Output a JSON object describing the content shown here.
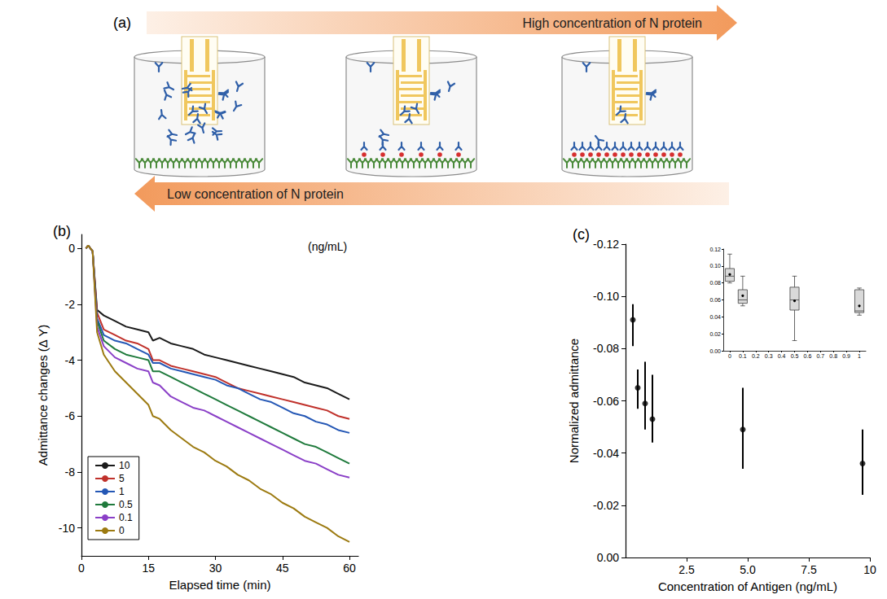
{
  "diagram": {
    "label": "(a)",
    "top_arrow": "High concentration of N protein",
    "bottom_arrow": "Low concentration of N protein"
  },
  "chart_data": [
    {
      "type": "line",
      "title": "(b)",
      "annotation": "(ng/mL)",
      "x_label": "Elapsed time (min)",
      "y_label": "Admittance changes (Δ Y)",
      "x": [
        1,
        1.5,
        2.5,
        3.5,
        5,
        7.5,
        10,
        12.5,
        15,
        16,
        17.5,
        20,
        22.5,
        25,
        27.5,
        30,
        32.5,
        35,
        37.5,
        40,
        42.5,
        45,
        47.5,
        50,
        52.5,
        55,
        57.5,
        60
      ],
      "series": [
        {
          "name": "10",
          "color": "#1a1a1a",
          "values": [
            0,
            0.1,
            -0.1,
            -2.2,
            -2.4,
            -2.6,
            -2.8,
            -2.9,
            -3.0,
            -3.3,
            -3.2,
            -3.4,
            -3.5,
            -3.6,
            -3.8,
            -3.9,
            -4.0,
            -4.1,
            -4.2,
            -4.3,
            -4.4,
            -4.5,
            -4.6,
            -4.8,
            -4.9,
            -5.0,
            -5.2,
            -5.4
          ]
        },
        {
          "name": "5",
          "color": "#c0312b",
          "values": [
            0,
            0.1,
            -0.1,
            -2.3,
            -2.9,
            -3.1,
            -3.3,
            -3.4,
            -3.6,
            -4.0,
            -4.0,
            -4.2,
            -4.3,
            -4.4,
            -4.5,
            -4.6,
            -4.8,
            -5.0,
            -5.1,
            -5.2,
            -5.3,
            -5.4,
            -5.5,
            -5.6,
            -5.7,
            -5.8,
            -6.0,
            -6.1
          ]
        },
        {
          "name": "1",
          "color": "#2457b5",
          "values": [
            0,
            0.1,
            -0.1,
            -2.5,
            -3.1,
            -3.3,
            -3.4,
            -3.6,
            -3.8,
            -4.1,
            -4.1,
            -4.3,
            -4.4,
            -4.5,
            -4.6,
            -4.7,
            -4.9,
            -5.0,
            -5.2,
            -5.4,
            -5.5,
            -5.7,
            -5.9,
            -6.0,
            -6.2,
            -6.3,
            -6.5,
            -6.6
          ]
        },
        {
          "name": "0.5",
          "color": "#1f7a3c",
          "values": [
            0,
            0.1,
            -0.1,
            -2.6,
            -3.3,
            -3.6,
            -3.8,
            -3.9,
            -4.0,
            -4.4,
            -4.4,
            -4.6,
            -4.8,
            -5.0,
            -5.2,
            -5.4,
            -5.6,
            -5.8,
            -6.0,
            -6.2,
            -6.4,
            -6.6,
            -6.8,
            -7.0,
            -7.1,
            -7.3,
            -7.5,
            -7.7
          ]
        },
        {
          "name": "0.1",
          "color": "#8a3fc7",
          "values": [
            0,
            0.1,
            -0.1,
            -2.8,
            -3.5,
            -3.9,
            -4.1,
            -4.3,
            -4.4,
            -4.8,
            -4.9,
            -5.3,
            -5.5,
            -5.7,
            -5.8,
            -6.0,
            -6.2,
            -6.4,
            -6.6,
            -6.8,
            -7.0,
            -7.2,
            -7.4,
            -7.6,
            -7.7,
            -7.9,
            -8.1,
            -8.2
          ]
        },
        {
          "name": "0",
          "color": "#9c7a10",
          "values": [
            0,
            0.1,
            -0.1,
            -3.0,
            -3.8,
            -4.4,
            -4.8,
            -5.2,
            -5.6,
            -6.0,
            -6.1,
            -6.5,
            -6.8,
            -7.1,
            -7.3,
            -7.6,
            -7.8,
            -8.1,
            -8.3,
            -8.6,
            -8.8,
            -9.1,
            -9.3,
            -9.6,
            -9.8,
            -10.0,
            -10.3,
            -10.5
          ]
        }
      ],
      "xlim": [
        0,
        62
      ],
      "xticks": [
        0,
        15,
        30,
        45,
        60
      ],
      "ylim": [
        -11,
        0.5
      ],
      "yticks": [
        0,
        -2,
        -4,
        -6,
        -8,
        -10
      ],
      "grid": false,
      "legend": "lower left"
    },
    {
      "type": "scatter",
      "title": "(c)",
      "x_label": "Concentration of Antigen (ng/mL)",
      "y_label": "Normalized admittance",
      "x": [
        0.3,
        0.5,
        0.8,
        1.1,
        4.8,
        9.7
      ],
      "values": [
        -0.091,
        -0.065,
        -0.059,
        -0.053,
        -0.049,
        -0.036
      ],
      "error_range": [
        [
          -0.081,
          -0.097
        ],
        [
          -0.057,
          -0.072
        ],
        [
          -0.049,
          -0.075
        ],
        [
          -0.044,
          -0.07
        ],
        [
          -0.034,
          -0.065
        ],
        [
          -0.024,
          -0.049
        ]
      ],
      "color": "#000000",
      "marker": "circle",
      "xlim": [
        0,
        10
      ],
      "xticks": [
        2.5,
        {
          "value": 5,
          "label": "5.0"
        },
        7.5,
        10
      ],
      "ylim": [
        0,
        -0.12
      ],
      "yticks": [
        {
          "value": 0,
          "label": "0.00"
        },
        -0.02,
        -0.04,
        -0.06,
        -0.08,
        {
          "value": -0.1,
          "label": "-0.10"
        },
        -0.12
      ],
      "grid": false
    },
    {
      "type": "boxplot",
      "x": [
        0,
        0.1,
        0.5,
        1
      ],
      "boxes": [
        [
          0.08,
          0.082,
          0.088,
          0.097,
          0.114
        ],
        [
          0.053,
          0.056,
          0.06,
          0.072,
          0.088
        ],
        [
          0.012,
          0.048,
          0.06,
          0.075,
          0.088
        ],
        [
          0.042,
          0.045,
          0.047,
          0.072,
          0.074
        ]
      ],
      "means": [
        0.09,
        0.065,
        0.059,
        0.053
      ],
      "color": "#d9d9d9",
      "xlim": [
        -0.05,
        1.05
      ],
      "xticks": [
        0,
        0.1,
        0.2,
        0.3,
        0.4,
        0.5,
        0.6,
        0.7,
        0.8,
        0.9,
        1
      ],
      "ylim": [
        0,
        0.12
      ],
      "yticks": [
        {
          "value": 0,
          "label": "0.00"
        },
        0.02,
        0.04,
        0.06,
        0.08,
        {
          "value": 0.1,
          "label": "0.10"
        },
        0.12
      ],
      "grid": false
    }
  ]
}
